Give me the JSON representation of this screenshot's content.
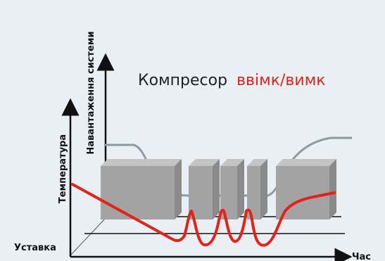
{
  "title": {
    "prefix": "Компресор",
    "highlight": "ввімк/вимк",
    "prefix_color": "#222222",
    "highlight_color": "#e0241b"
  },
  "axes": {
    "front_y_label": "Температура",
    "back_y_label": "Навантаження системи",
    "x_label": "Час",
    "setpoint_label": "Уставка"
  },
  "colors": {
    "background": "#e9eff3",
    "block_front": "#a3a3a3",
    "block_side": "#8a8a8a",
    "block_top": "#c4c4c4",
    "load_line": "#8c9aa2",
    "temperature_line": "#e0241b",
    "axis": "#111111"
  },
  "legend": {
    "compressor_blocks_count": 5
  }
}
